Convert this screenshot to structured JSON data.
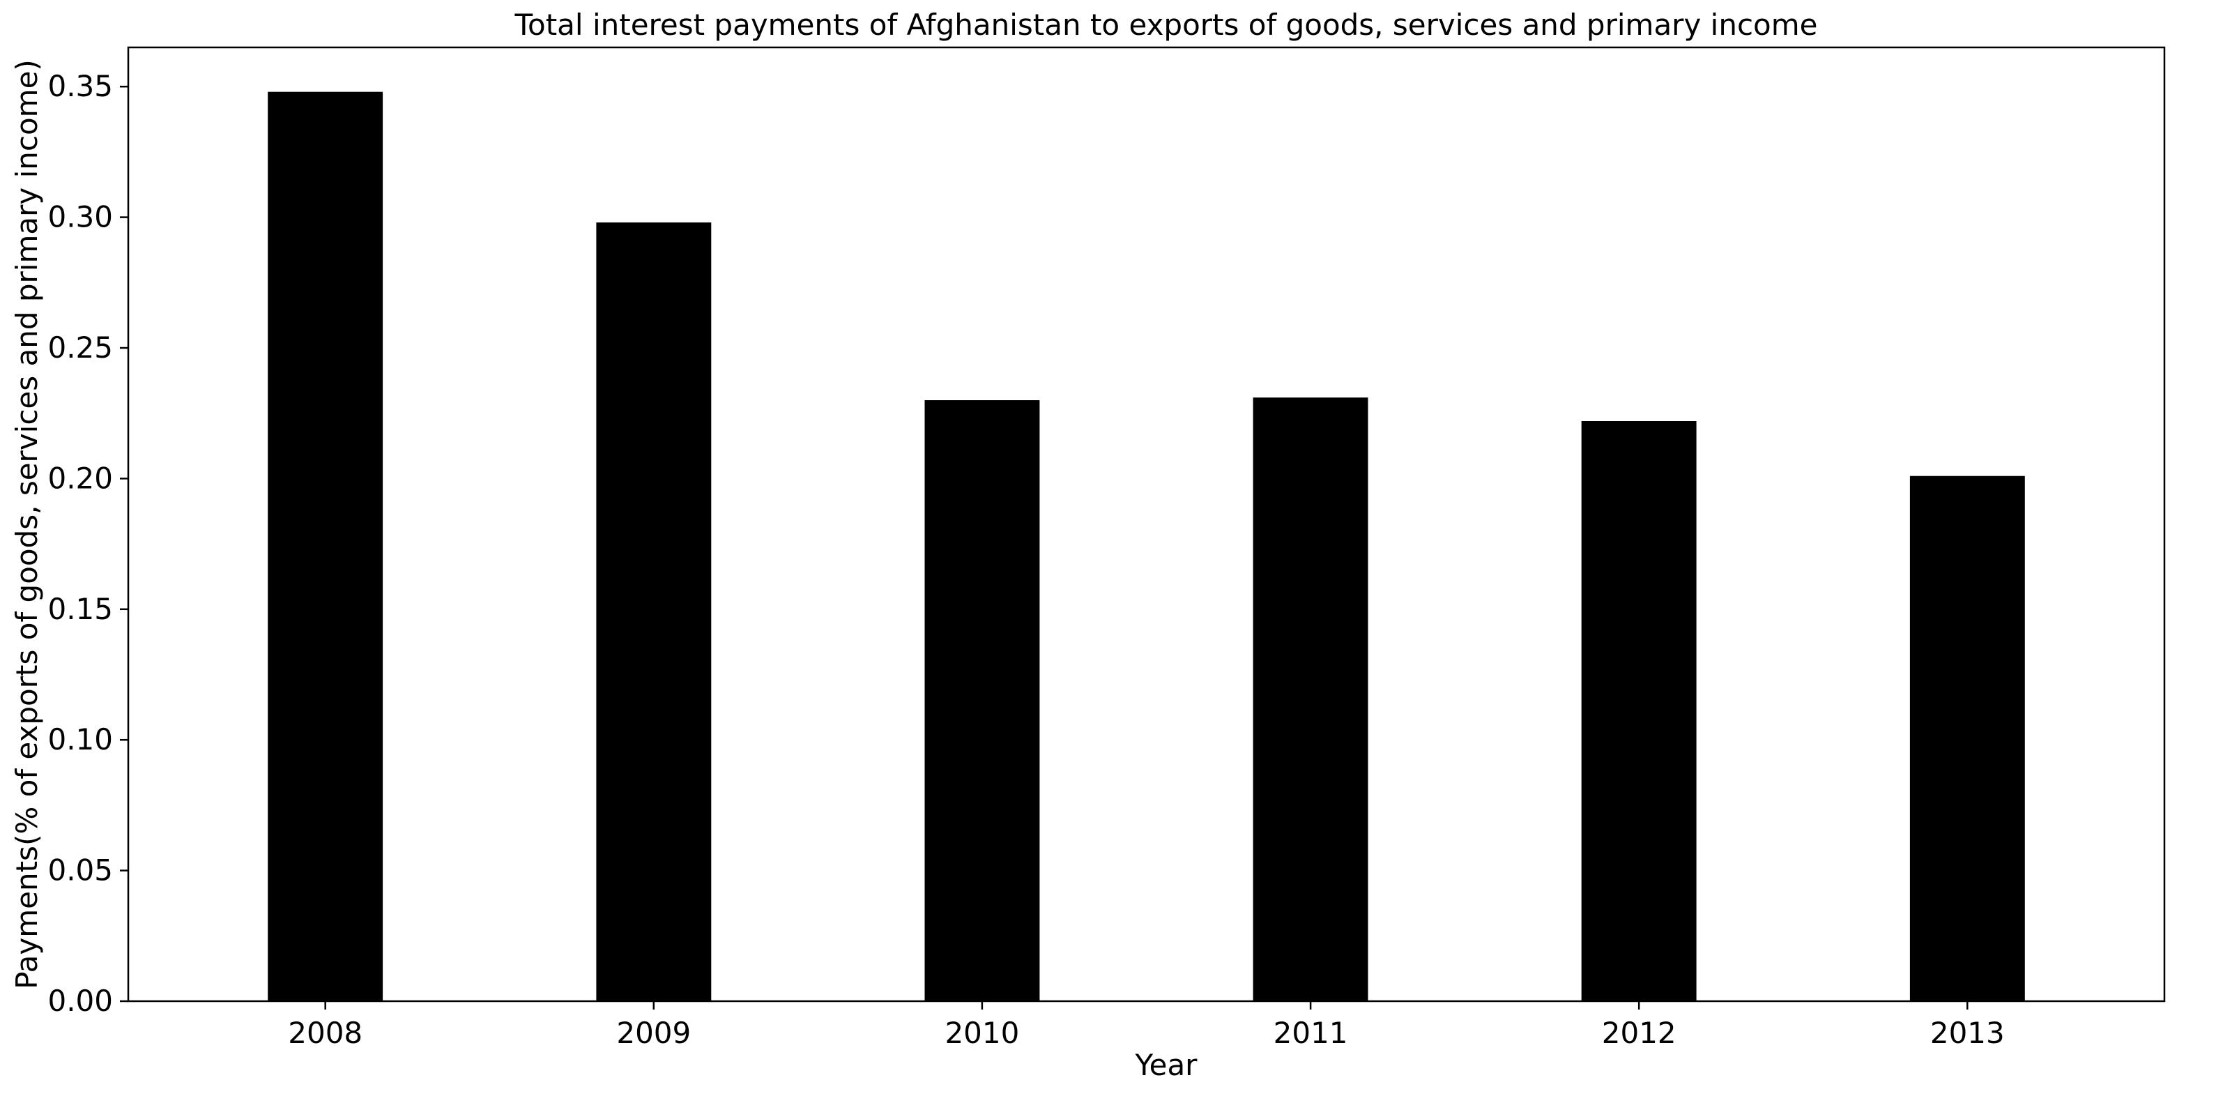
{
  "chart_data": {
    "type": "bar",
    "title": "Total interest payments of Afghanistan to exports of goods, services and primary income",
    "xlabel": "Year",
    "ylabel": "Payments(% of exports of goods, services and primary income)",
    "categories": [
      "2008",
      "2009",
      "2010",
      "2011",
      "2012",
      "2013"
    ],
    "values": [
      0.348,
      0.298,
      0.23,
      0.231,
      0.222,
      0.201
    ],
    "ylim": [
      0,
      0.365
    ],
    "yticks": [
      0.0,
      0.05,
      0.1,
      0.15,
      0.2,
      0.25,
      0.3,
      0.35
    ],
    "ytick_labels": [
      "0.00",
      "0.05",
      "0.10",
      "0.15",
      "0.20",
      "0.25",
      "0.30",
      "0.35"
    ],
    "bar_color": "#000000",
    "grid": false,
    "legend": "none"
  }
}
